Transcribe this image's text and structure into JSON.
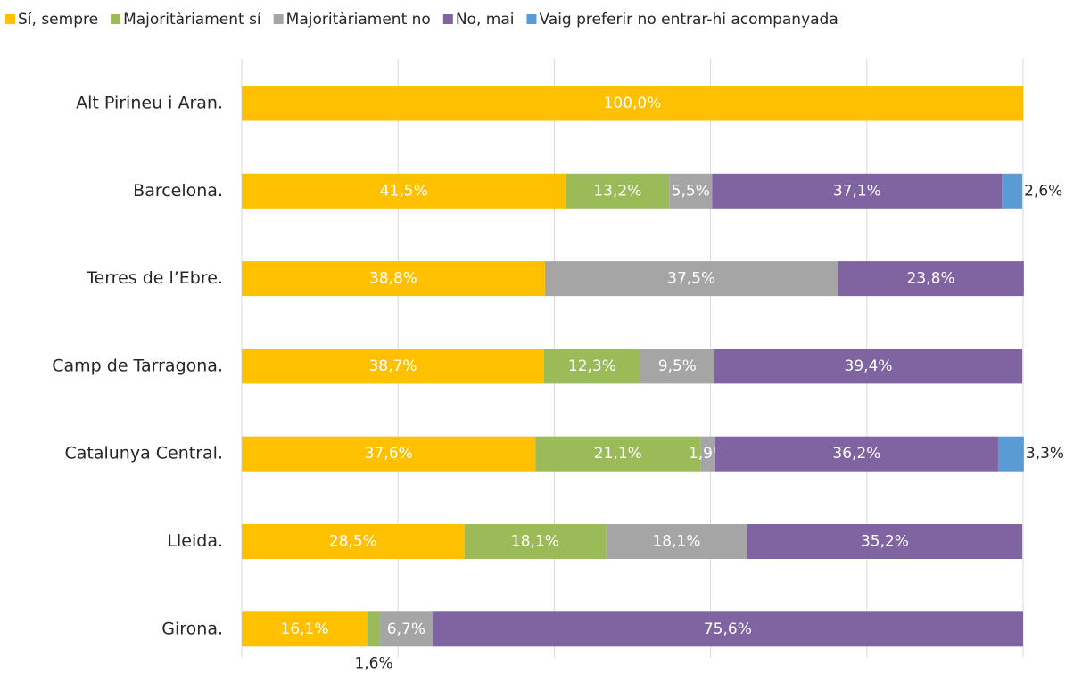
{
  "chart_data": {
    "type": "stacked-bar-horizontal",
    "categories": [
      "Alt Pirineu i Aran.",
      "Barcelona.",
      "Terres de l’Ebre.",
      "Camp de Tarragona.",
      "Catalunya Central.",
      "Lleida.",
      "Girona."
    ],
    "series": [
      {
        "name": "Sí, sempre",
        "color": "#ffc000",
        "values": [
          100,
          41.5,
          38.8,
          38.7,
          37.6,
          28.5,
          16.1
        ],
        "value_labels": [
          "100,0%",
          "41,5%",
          "38,8%",
          "38,7%",
          "37,6%",
          "28,5%",
          "16,1%"
        ]
      },
      {
        "name": "Majoritàriament sí",
        "color": "#9bbb59",
        "values": [
          0,
          13.2,
          0,
          12.3,
          21.1,
          18.1,
          1.6
        ],
        "value_labels": [
          null,
          "13,2%",
          null,
          "12,3%",
          "21,1%",
          "18,1%",
          "1,6%"
        ]
      },
      {
        "name": "Majoritàriament no",
        "color": "#a5a5a5",
        "values": [
          0,
          5.5,
          37.5,
          9.5,
          1.9,
          18.1,
          6.7
        ],
        "value_labels": [
          null,
          "5,5%",
          "37,5%",
          "9,5%",
          "1,9%",
          "18,1%",
          "6,7%"
        ]
      },
      {
        "name": "No, mai",
        "color": "#8064a2",
        "values": [
          0,
          37.1,
          23.8,
          39.4,
          36.2,
          35.2,
          75.6
        ],
        "value_labels": [
          null,
          "37,1%",
          "23,8%",
          "39,4%",
          "36,2%",
          "35,2%",
          "75,6%"
        ]
      },
      {
        "name": "Vaig preferir no entrar-hi acompanyada",
        "color": "#5b9bd5",
        "values": [
          0,
          2.6,
          0,
          0,
          3.3,
          0,
          0
        ],
        "value_labels": [
          null,
          "2,6%",
          null,
          null,
          "3,3%",
          null,
          null
        ]
      }
    ],
    "xlim": [
      0,
      100
    ],
    "xticks": [
      0,
      20,
      40,
      60,
      80,
      100
    ],
    "grid": true,
    "legend": "top"
  }
}
